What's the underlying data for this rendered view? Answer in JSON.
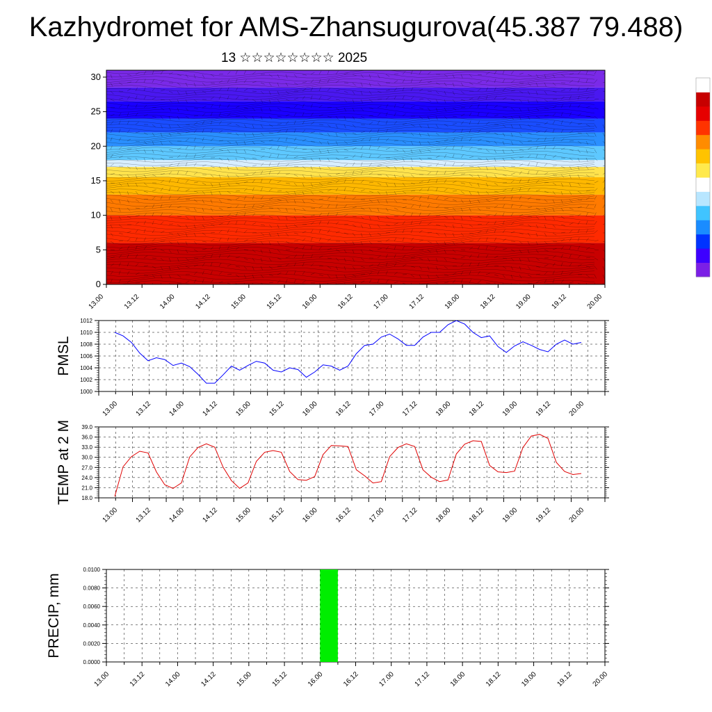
{
  "title": "Kazhydromet for AMS-Zhansugurova(45.387 79.488)",
  "subtitle": "13 ☆☆☆☆☆☆☆☆ 2025",
  "colorbar_colors": [
    "#7b1fe6",
    "#3d00ff",
    "#0033ff",
    "#1a8cff",
    "#40c4ff",
    "#b8e6ff",
    "#ffffff",
    "#ffe94d",
    "#ffc300",
    "#ff8c00",
    "#ff3300",
    "#e60000",
    "#c70000",
    "#ffffff"
  ],
  "chart_data": [
    {
      "type": "heatmap",
      "name": "vertical-cross-section",
      "ylabel": "",
      "x_ticks": [
        "13.00",
        "13.12",
        "14.00",
        "14.12",
        "15.00",
        "15.12",
        "16.00",
        "16.12",
        "17.00",
        "17.12",
        "18.00",
        "18.12",
        "19.00",
        "19.12",
        "20.00"
      ],
      "y_ticks": [
        "0",
        "5",
        "10",
        "15",
        "20",
        "25",
        "30"
      ],
      "ylim": [
        0,
        31
      ],
      "bands": [
        {
          "from": 0,
          "to": 6,
          "color": "#c80000"
        },
        {
          "from": 6,
          "to": 10,
          "color": "#ff2a00"
        },
        {
          "from": 10,
          "to": 13,
          "color": "#ff7a00"
        },
        {
          "from": 13,
          "to": 15.5,
          "color": "#ffb800"
        },
        {
          "from": 15.5,
          "to": 17,
          "color": "#ffe34d"
        },
        {
          "from": 17,
          "to": 18,
          "color": "#d8eeff"
        },
        {
          "from": 18,
          "to": 20,
          "color": "#5ec8ff"
        },
        {
          "from": 20,
          "to": 22,
          "color": "#2a8fff"
        },
        {
          "from": 22,
          "to": 24,
          "color": "#1a4dff"
        },
        {
          "from": 24,
          "to": 26.5,
          "color": "#1a00ff"
        },
        {
          "from": 26.5,
          "to": 28.5,
          "color": "#4a18f0"
        },
        {
          "from": 28.5,
          "to": 31,
          "color": "#7a2ae8"
        }
      ]
    },
    {
      "type": "line",
      "name": "pmsl",
      "ylabel": "PMSL",
      "color": "#0000ff",
      "x_ticks": [
        "13.00",
        "13.12",
        "14.00",
        "14.12",
        "15.00",
        "15.12",
        "16.00",
        "16.12",
        "17.00",
        "17.12",
        "18.00",
        "18.12",
        "19.00",
        "19.12",
        "20.00"
      ],
      "y_ticks": [
        "1000",
        "1002",
        "1004",
        "1006",
        "1008",
        "1010",
        "1012"
      ],
      "ylim": [
        1000,
        1012
      ],
      "x_step_hours": 3,
      "values": [
        1010.0,
        1009.4,
        1008.3,
        1006.5,
        1005.2,
        1005.7,
        1005.4,
        1004.4,
        1004.8,
        1004.2,
        1002.9,
        1001.4,
        1001.4,
        1002.8,
        1004.3,
        1003.6,
        1004.4,
        1005.1,
        1004.8,
        1003.6,
        1003.3,
        1004.0,
        1003.7,
        1002.4,
        1003.3,
        1004.5,
        1004.3,
        1003.6,
        1004.3,
        1006.4,
        1007.8,
        1008.0,
        1009.2,
        1009.7,
        1008.9,
        1007.8,
        1007.8,
        1009.2,
        1010.0,
        1010.0,
        1011.3,
        1012.0,
        1011.4,
        1010.0,
        1009.1,
        1009.4,
        1007.6,
        1006.6,
        1007.7,
        1008.4,
        1007.8,
        1007.1,
        1006.7,
        1008.0,
        1008.7,
        1008.0,
        1008.3
      ]
    },
    {
      "type": "line",
      "name": "temp-2m",
      "ylabel": "TEMP at 2 M",
      "color": "#e00000",
      "x_ticks": [
        "13.00",
        "13.12",
        "14.00",
        "14.12",
        "15.00",
        "15.12",
        "16.00",
        "16.12",
        "17.00",
        "17.12",
        "18.00",
        "18.12",
        "19.00",
        "19.12",
        "20.00"
      ],
      "y_ticks": [
        "18.0",
        "21.0",
        "24.0",
        "27.0",
        "30.0",
        "33.0",
        "36.0",
        "39.0"
      ],
      "ylim": [
        18,
        39
      ],
      "x_step_hours": 3,
      "values": [
        18.4,
        27.2,
        30.2,
        31.8,
        31.3,
        25.7,
        21.9,
        20.8,
        22.4,
        30.1,
        32.9,
        34.0,
        33.0,
        27.1,
        23.1,
        20.8,
        22.4,
        28.8,
        31.5,
        32.0,
        31.5,
        25.8,
        23.4,
        23.2,
        24.3,
        30.8,
        33.5,
        33.4,
        33.2,
        26.3,
        24.5,
        22.4,
        22.8,
        30.2,
        32.9,
        34.0,
        33.2,
        26.3,
        24.1,
        22.8,
        23.3,
        31.0,
        33.9,
        34.9,
        34.7,
        27.6,
        25.7,
        25.5,
        25.9,
        32.9,
        36.3,
        36.8,
        35.6,
        28.5,
        25.8,
        24.9,
        25.2
      ]
    },
    {
      "type": "bar",
      "name": "precip",
      "ylabel": "PRECIP, mm",
      "color": "#00ee00",
      "x_ticks": [
        "13.00",
        "13.12",
        "14.00",
        "14.12",
        "15.00",
        "15.12",
        "16.00",
        "16.12",
        "17.00",
        "17.12",
        "18.00",
        "18.12",
        "19.00",
        "19.12",
        "20.00"
      ],
      "y_ticks": [
        "0.0000",
        "0.0020",
        "0.0040",
        "0.0060",
        "0.0080",
        "0.0100"
      ],
      "ylim": [
        0,
        0.01
      ],
      "bars": [
        {
          "x_from": "16.00",
          "x_to": "16.06",
          "value": 0.01
        }
      ]
    }
  ]
}
